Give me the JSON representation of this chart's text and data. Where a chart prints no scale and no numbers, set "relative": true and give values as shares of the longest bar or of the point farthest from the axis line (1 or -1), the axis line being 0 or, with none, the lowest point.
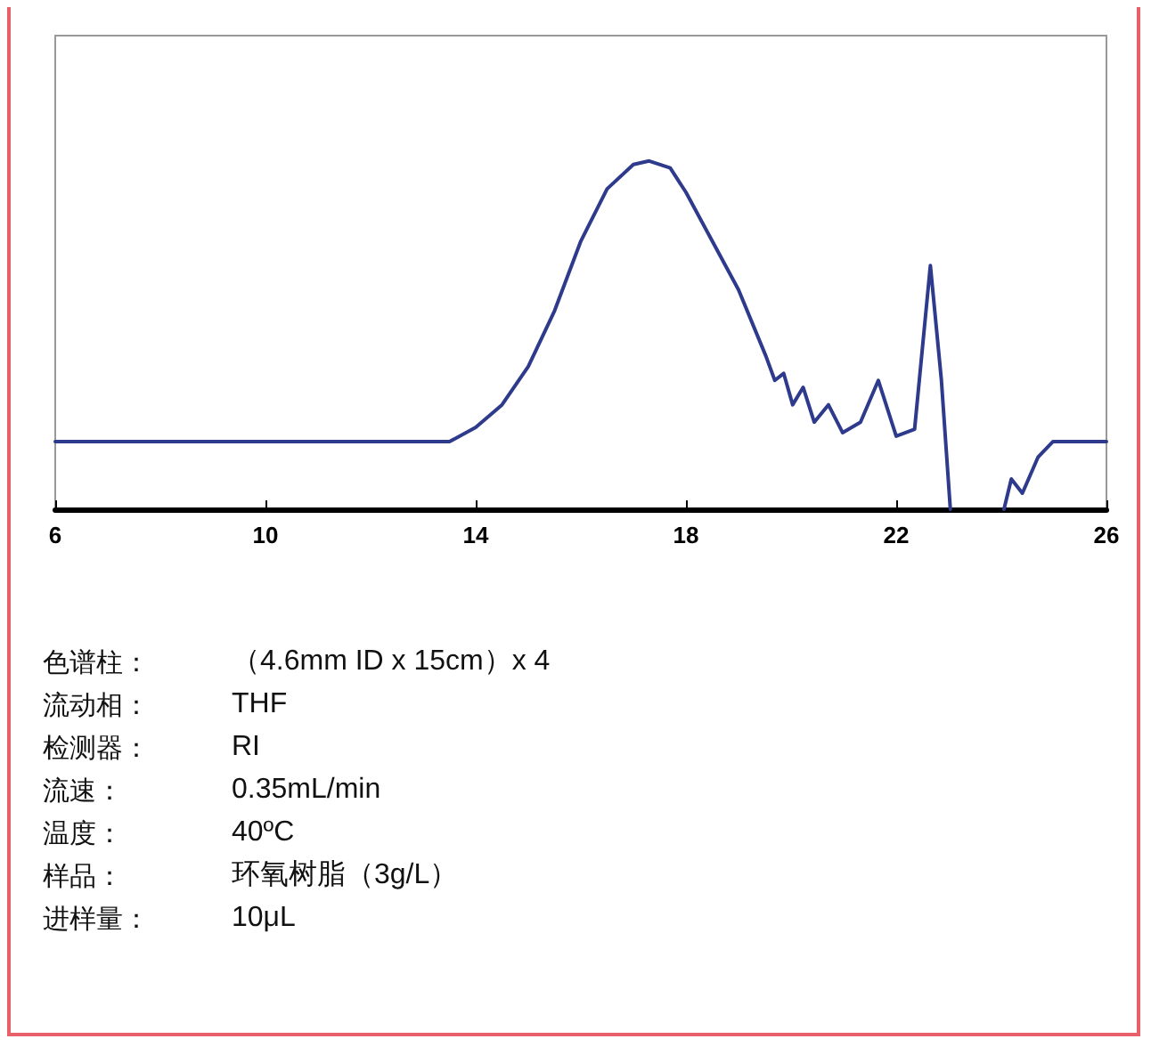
{
  "chart_data": {
    "type": "line",
    "relative": true,
    "x": [
      6,
      10,
      13.5,
      14,
      14.5,
      15,
      15.5,
      16,
      16.5,
      17,
      17.3,
      17.7,
      18,
      18.5,
      19,
      19.52,
      19.69,
      19.86,
      20.03,
      20.23,
      20.44,
      20.71,
      20.98,
      21.32,
      21.66,
      22.0,
      22.35,
      22.65,
      22.86,
      23.03,
      23.5,
      24.05,
      24.19,
      24.4,
      24.7,
      24.98,
      26
    ],
    "series": [
      {
        "color": "#2e3a8c",
        "values": [
          0.194,
          0.194,
          0.194,
          0.235,
          0.3,
          0.41,
          0.57,
          0.77,
          0.92,
          0.99,
          1,
          0.98,
          0.91,
          0.77,
          0.63,
          0.44,
          0.37,
          0.39,
          0.3,
          0.35,
          0.25,
          0.3,
          0.22,
          0.25,
          0.37,
          0.21,
          0.23,
          0.7,
          0.37,
          0,
          null,
          0,
          0.087,
          0.046,
          0.15,
          0.194,
          0.194
        ]
      }
    ],
    "xlim": [
      6,
      26
    ],
    "xticks": [
      6,
      10,
      14,
      18,
      22,
      26
    ],
    "marker": "none",
    "line_style": "solid",
    "annotations": [
      "色谱柱：",
      "（4.6mm ID x 15cm）x 4",
      "流动相：",
      "THF",
      "检测器：",
      "RI",
      "流速：",
      "0.35mL/min",
      "温度：",
      "40ºC",
      "样品：",
      "环氧树脂（3g/L）",
      "进样量：",
      "10μL"
    ]
  }
}
